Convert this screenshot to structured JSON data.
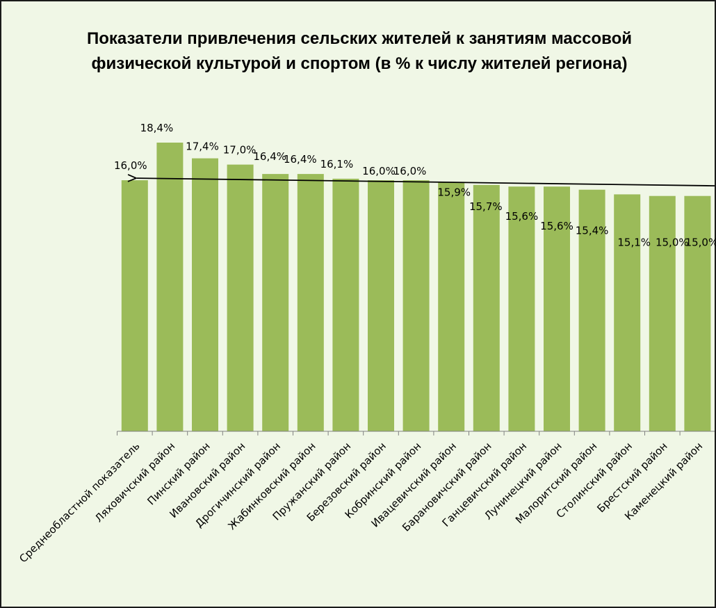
{
  "chart_data": {
    "type": "bar",
    "title_line1": "Показатели привлечения сельских жителей к занятиям  массовой",
    "title_line2": "физической культурой и спортом (в % к числу жителей региона)",
    "categories": [
      "Среднеобластной показатель",
      "Ляховичский район",
      "Пинский район",
      "Ивановский район",
      "Дрогичинский район",
      "Жабинковский район",
      "Пружанский район",
      "Березовский район",
      "Кобринский район",
      "Ивацевичский район",
      "Барановичский район",
      "Ганцевичский район",
      "Лунинецкий район",
      "Малоритский район",
      "Столинский район",
      "Брестский район",
      "Каменецкий район"
    ],
    "values": [
      16.0,
      18.4,
      17.4,
      17.0,
      16.4,
      16.4,
      16.1,
      16.0,
      16.0,
      15.9,
      15.7,
      15.6,
      15.6,
      15.4,
      15.1,
      15.0,
      15.0
    ],
    "data_labels": [
      "16,0%",
      "18,4%",
      "17,4%",
      "17,0%",
      "16,4%",
      "16,4%",
      "16,1%",
      "16,0%",
      "16,0%",
      "15,9%",
      "15,7%",
      "15,6%",
      "15,6%",
      "15,4%",
      "15,1%",
      "15,0%",
      "15,0%"
    ],
    "ylim": [
      0,
      18.4
    ],
    "gridlines": false,
    "legend": "none",
    "annotation": "trend arrow pointing to the average value",
    "colors": {
      "bar": "#9bbb59",
      "background": "#f0f7e6",
      "border": "#1a1a1a",
      "axis": "#808080",
      "arrow": "#000000"
    }
  }
}
